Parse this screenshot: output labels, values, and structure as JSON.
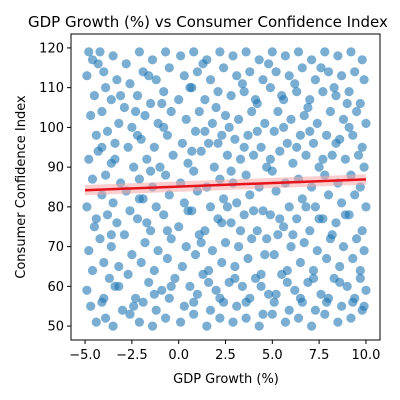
{
  "chart_data": {
    "type": "scatter",
    "title": "GDP Growth (%) vs Consumer Confidence Index",
    "xlabel": "GDP Growth (%)",
    "ylabel": "Consumer Confidence Index",
    "xlim": [
      -5.75,
      10.75
    ],
    "ylim": [
      46.5,
      123.5
    ],
    "xticks": [
      -5.0,
      -2.5,
      0.0,
      2.5,
      5.0,
      7.5,
      10.0
    ],
    "xtick_labels": [
      "−5.0",
      "−2.5",
      "0.0",
      "2.5",
      "5.0",
      "7.5",
      "10.0"
    ],
    "yticks": [
      50,
      60,
      70,
      80,
      90,
      100,
      110,
      120
    ],
    "ytick_labels": [
      "50",
      "60",
      "70",
      "80",
      "90",
      "100",
      "110",
      "120"
    ],
    "grid": false,
    "point_color": "#1f77b4",
    "point_alpha": 0.6,
    "regression": {
      "color": "#e8141c",
      "band_color": "#f4a7a7",
      "x_start": -5.0,
      "y_start": 84.2,
      "x_end": 10.0,
      "y_end": 86.9,
      "ci_halfwidth": 1.3
    },
    "points": [
      [
        -4.8,
        119
      ],
      [
        -4.6,
        117
      ],
      [
        -4.9,
        113
      ],
      [
        -4.5,
        108
      ],
      [
        -4.7,
        103
      ],
      [
        -4.4,
        98
      ],
      [
        -4.8,
        92
      ],
      [
        -4.6,
        87
      ],
      [
        -4.9,
        80
      ],
      [
        -4.5,
        75
      ],
      [
        -4.8,
        69
      ],
      [
        -4.6,
        64
      ],
      [
        -4.9,
        59
      ],
      [
        -4.7,
        55
      ],
      [
        -4.4,
        51
      ],
      [
        -4.2,
        119
      ],
      [
        -4.0,
        114
      ],
      [
        -3.9,
        110
      ],
      [
        -4.1,
        104
      ],
      [
        -3.8,
        99
      ],
      [
        -4.3,
        94
      ],
      [
        -3.9,
        88
      ],
      [
        -4.1,
        83
      ],
      [
        -3.8,
        78
      ],
      [
        -4.2,
        72
      ],
      [
        -4.0,
        66
      ],
      [
        -3.7,
        62
      ],
      [
        -4.1,
        56
      ],
      [
        -3.9,
        52
      ],
      [
        -3.5,
        118
      ],
      [
        -3.3,
        112
      ],
      [
        -3.6,
        107
      ],
      [
        -3.2,
        101
      ],
      [
        -3.4,
        96
      ],
      [
        -3.6,
        91
      ],
      [
        -3.1,
        86
      ],
      [
        -3.5,
        81
      ],
      [
        -3.3,
        76
      ],
      [
        -3.6,
        70
      ],
      [
        -3.2,
        65
      ],
      [
        -3.4,
        60
      ],
      [
        -3.0,
        54
      ],
      [
        -3.5,
        50
      ],
      [
        -2.8,
        116
      ],
      [
        -2.6,
        111
      ],
      [
        -2.9,
        105
      ],
      [
        -2.5,
        100
      ],
      [
        -2.7,
        95
      ],
      [
        -2.4,
        90
      ],
      [
        -2.8,
        84
      ],
      [
        -2.6,
        79
      ],
      [
        -2.9,
        73
      ],
      [
        -2.5,
        68
      ],
      [
        -2.7,
        63
      ],
      [
        -2.3,
        57
      ],
      [
        -2.6,
        53
      ],
      [
        -2.1,
        119
      ],
      [
        -1.9,
        114
      ],
      [
        -2.2,
        108
      ],
      [
        -1.8,
        103
      ],
      [
        -2.0,
        97
      ],
      [
        -1.7,
        92
      ],
      [
        -2.1,
        87
      ],
      [
        -1.9,
        82
      ],
      [
        -2.2,
        77
      ],
      [
        -1.8,
        71
      ],
      [
        -2.0,
        66
      ],
      [
        -1.6,
        61
      ],
      [
        -1.9,
        56
      ],
      [
        -2.1,
        51
      ],
      [
        -1.4,
        117
      ],
      [
        -1.2,
        112
      ],
      [
        -1.5,
        106
      ],
      [
        -1.1,
        101
      ],
      [
        -1.3,
        95
      ],
      [
        -1.0,
        90
      ],
      [
        -1.4,
        85
      ],
      [
        -1.2,
        80
      ],
      [
        -1.5,
        74
      ],
      [
        -1.1,
        69
      ],
      [
        -1.3,
        64
      ],
      [
        -0.9,
        59
      ],
      [
        -1.2,
        54
      ],
      [
        -1.4,
        50
      ],
      [
        -0.7,
        119
      ],
      [
        -0.5,
        115
      ],
      [
        -0.8,
        109
      ],
      [
        -0.4,
        104
      ],
      [
        -0.6,
        98
      ],
      [
        -0.3,
        93
      ],
      [
        -0.7,
        88
      ],
      [
        -0.5,
        83
      ],
      [
        -0.8,
        78
      ],
      [
        -0.4,
        72
      ],
      [
        -0.6,
        67
      ],
      [
        -0.2,
        62
      ],
      [
        -0.5,
        57
      ],
      [
        -0.7,
        52
      ],
      [
        0.1,
        118
      ],
      [
        0.3,
        113
      ],
      [
        0.0,
        107
      ],
      [
        0.4,
        102
      ],
      [
        0.2,
        96
      ],
      [
        0.5,
        91
      ],
      [
        0.1,
        86
      ],
      [
        0.3,
        81
      ],
      [
        0.0,
        75
      ],
      [
        0.4,
        70
      ],
      [
        0.2,
        65
      ],
      [
        0.6,
        60
      ],
      [
        0.3,
        55
      ],
      [
        0.1,
        51
      ],
      [
        0.8,
        119
      ],
      [
        1.0,
        114
      ],
      [
        0.7,
        110
      ],
      [
        1.1,
        104
      ],
      [
        0.9,
        99
      ],
      [
        1.2,
        94
      ],
      [
        0.8,
        89
      ],
      [
        1.0,
        84
      ],
      [
        0.7,
        79
      ],
      [
        1.1,
        73
      ],
      [
        0.9,
        68
      ],
      [
        1.3,
        63
      ],
      [
        1.0,
        58
      ],
      [
        0.8,
        53
      ],
      [
        1.5,
        117
      ],
      [
        1.7,
        112
      ],
      [
        1.4,
        107
      ],
      [
        1.8,
        101
      ],
      [
        1.6,
        96
      ],
      [
        1.9,
        90
      ],
      [
        1.5,
        85
      ],
      [
        1.7,
        80
      ],
      [
        1.4,
        74
      ],
      [
        1.8,
        69
      ],
      [
        1.6,
        64
      ],
      [
        2.0,
        59
      ],
      [
        1.7,
        54
      ],
      [
        1.5,
        50
      ],
      [
        2.2,
        119
      ],
      [
        2.4,
        115
      ],
      [
        2.1,
        109
      ],
      [
        2.5,
        103
      ],
      [
        2.3,
        98
      ],
      [
        2.6,
        93
      ],
      [
        2.2,
        87
      ],
      [
        2.4,
        82
      ],
      [
        2.1,
        77
      ],
      [
        2.5,
        71
      ],
      [
        2.3,
        66
      ],
      [
        2.7,
        61
      ],
      [
        2.4,
        56
      ],
      [
        2.2,
        52
      ],
      [
        2.9,
        118
      ],
      [
        3.1,
        113
      ],
      [
        2.8,
        108
      ],
      [
        3.2,
        102
      ],
      [
        3.0,
        97
      ],
      [
        3.3,
        92
      ],
      [
        2.9,
        86
      ],
      [
        3.1,
        81
      ],
      [
        2.8,
        76
      ],
      [
        3.2,
        70
      ],
      [
        3.0,
        65
      ],
      [
        3.4,
        60
      ],
      [
        3.1,
        55
      ],
      [
        2.9,
        51
      ],
      [
        3.6,
        119
      ],
      [
        3.8,
        114
      ],
      [
        3.5,
        109
      ],
      [
        3.9,
        104
      ],
      [
        3.7,
        98
      ],
      [
        4.0,
        93
      ],
      [
        3.6,
        88
      ],
      [
        3.8,
        83
      ],
      [
        3.5,
        78
      ],
      [
        3.9,
        72
      ],
      [
        3.7,
        67
      ],
      [
        4.1,
        62
      ],
      [
        3.8,
        57
      ],
      [
        3.6,
        52
      ],
      [
        4.3,
        117
      ],
      [
        4.5,
        112
      ],
      [
        4.2,
        106
      ],
      [
        4.6,
        101
      ],
      [
        4.4,
        95
      ],
      [
        4.7,
        90
      ],
      [
        4.3,
        85
      ],
      [
        4.5,
        79
      ],
      [
        4.2,
        74
      ],
      [
        4.6,
        68
      ],
      [
        4.4,
        63
      ],
      [
        4.8,
        58
      ],
      [
        4.5,
        53
      ],
      [
        4.3,
        50
      ],
      [
        5.0,
        119
      ],
      [
        5.2,
        114
      ],
      [
        4.9,
        110
      ],
      [
        5.3,
        104
      ],
      [
        5.1,
        99
      ],
      [
        5.4,
        94
      ],
      [
        5.0,
        89
      ],
      [
        5.2,
        84
      ],
      [
        4.9,
        78
      ],
      [
        5.3,
        73
      ],
      [
        5.1,
        68
      ],
      [
        5.5,
        63
      ],
      [
        5.2,
        58
      ],
      [
        5.0,
        53
      ],
      [
        5.7,
        118
      ],
      [
        5.9,
        113
      ],
      [
        5.6,
        107
      ],
      [
        6.0,
        102
      ],
      [
        5.8,
        96
      ],
      [
        6.1,
        91
      ],
      [
        5.7,
        86
      ],
      [
        5.9,
        80
      ],
      [
        5.6,
        75
      ],
      [
        6.0,
        70
      ],
      [
        5.8,
        64
      ],
      [
        6.2,
        59
      ],
      [
        5.9,
        54
      ],
      [
        5.7,
        51
      ],
      [
        6.4,
        119
      ],
      [
        6.6,
        115
      ],
      [
        6.3,
        109
      ],
      [
        6.7,
        103
      ],
      [
        6.5,
        98
      ],
      [
        6.8,
        93
      ],
      [
        6.4,
        87
      ],
      [
        6.6,
        82
      ],
      [
        6.3,
        77
      ],
      [
        6.7,
        71
      ],
      [
        6.5,
        66
      ],
      [
        6.9,
        61
      ],
      [
        6.6,
        56
      ],
      [
        6.4,
        52
      ],
      [
        7.1,
        117
      ],
      [
        7.3,
        112
      ],
      [
        7.0,
        107
      ],
      [
        7.4,
        101
      ],
      [
        7.2,
        96
      ],
      [
        7.5,
        90
      ],
      [
        7.1,
        85
      ],
      [
        7.3,
        80
      ],
      [
        7.0,
        74
      ],
      [
        7.4,
        69
      ],
      [
        7.2,
        64
      ],
      [
        7.6,
        58
      ],
      [
        7.3,
        54
      ],
      [
        7.1,
        50
      ],
      [
        7.8,
        119
      ],
      [
        8.0,
        114
      ],
      [
        7.7,
        109
      ],
      [
        8.1,
        104
      ],
      [
        7.9,
        98
      ],
      [
        8.2,
        93
      ],
      [
        7.8,
        88
      ],
      [
        8.0,
        83
      ],
      [
        7.7,
        77
      ],
      [
        8.1,
        72
      ],
      [
        7.9,
        67
      ],
      [
        8.3,
        62
      ],
      [
        8.0,
        57
      ],
      [
        7.8,
        53
      ],
      [
        8.5,
        118
      ],
      [
        8.7,
        113
      ],
      [
        8.4,
        108
      ],
      [
        8.8,
        102
      ],
      [
        8.6,
        97
      ],
      [
        8.9,
        92
      ],
      [
        8.5,
        86
      ],
      [
        8.7,
        81
      ],
      [
        8.4,
        76
      ],
      [
        8.8,
        70
      ],
      [
        8.6,
        65
      ],
      [
        9.0,
        60
      ],
      [
        8.7,
        55
      ],
      [
        8.5,
        51
      ],
      [
        9.2,
        119
      ],
      [
        9.4,
        114
      ],
      [
        9.1,
        109
      ],
      [
        9.5,
        104
      ],
      [
        9.3,
        98
      ],
      [
        9.6,
        93
      ],
      [
        9.2,
        88
      ],
      [
        9.4,
        83
      ],
      [
        9.1,
        78
      ],
      [
        9.5,
        72
      ],
      [
        9.3,
        67
      ],
      [
        9.7,
        62
      ],
      [
        9.4,
        57
      ],
      [
        9.2,
        52
      ],
      [
        9.8,
        117
      ],
      [
        9.9,
        112
      ],
      [
        9.7,
        106
      ],
      [
        10.0,
        101
      ],
      [
        9.8,
        95
      ],
      [
        9.9,
        90
      ],
      [
        9.7,
        85
      ],
      [
        10.0,
        80
      ],
      [
        9.8,
        74
      ],
      [
        9.9,
        69
      ],
      [
        9.7,
        64
      ],
      [
        10.0,
        59
      ],
      [
        9.8,
        54
      ],
      [
        9.9,
        55
      ],
      [
        -4.3,
        116
      ],
      [
        -3.1,
        108
      ],
      [
        -2.3,
        104
      ],
      [
        -1.6,
        113
      ],
      [
        -0.9,
        106
      ],
      [
        0.6,
        110
      ],
      [
        1.3,
        116
      ],
      [
        2.0,
        105
      ],
      [
        2.7,
        100
      ],
      [
        3.4,
        111
      ],
      [
        4.1,
        107
      ],
      [
        4.8,
        116
      ],
      [
        5.5,
        108
      ],
      [
        6.2,
        111
      ],
      [
        6.9,
        105
      ],
      [
        7.6,
        115
      ],
      [
        8.3,
        110
      ],
      [
        9.0,
        106
      ],
      [
        -4.1,
        95
      ],
      [
        -3.4,
        92
      ],
      [
        -2.2,
        98
      ],
      [
        -1.5,
        89
      ],
      [
        -0.8,
        100
      ],
      [
        0.7,
        94
      ],
      [
        1.4,
        99
      ],
      [
        2.1,
        96
      ],
      [
        2.8,
        89
      ],
      [
        3.5,
        95
      ],
      [
        4.2,
        99
      ],
      [
        4.9,
        92
      ],
      [
        5.6,
        100
      ],
      [
        6.3,
        95
      ],
      [
        7.0,
        99
      ],
      [
        7.7,
        92
      ],
      [
        8.4,
        96
      ],
      [
        9.1,
        100
      ],
      [
        -4.4,
        77
      ],
      [
        -3.6,
        73
      ],
      [
        -2.1,
        82
      ],
      [
        -1.7,
        76
      ],
      [
        -0.6,
        74
      ],
      [
        0.5,
        79
      ],
      [
        1.2,
        71
      ],
      [
        2.3,
        76
      ],
      [
        2.6,
        80
      ],
      [
        3.3,
        74
      ],
      [
        4.0,
        79
      ],
      [
        4.7,
        72
      ],
      [
        5.4,
        77
      ],
      [
        6.1,
        73
      ],
      [
        6.8,
        80
      ],
      [
        7.5,
        77
      ],
      [
        8.2,
        73
      ],
      [
        8.9,
        78
      ],
      [
        -4.0,
        57
      ],
      [
        -3.2,
        60
      ],
      [
        -2.4,
        55
      ],
      [
        -1.3,
        58
      ],
      [
        -0.4,
        60
      ],
      [
        0.8,
        56
      ],
      [
        1.6,
        61
      ],
      [
        2.2,
        57
      ],
      [
        3.0,
        62
      ],
      [
        3.6,
        56
      ],
      [
        4.4,
        60
      ],
      [
        5.1,
        56
      ],
      [
        5.8,
        61
      ],
      [
        6.5,
        57
      ],
      [
        7.2,
        62
      ],
      [
        7.9,
        56
      ],
      [
        8.6,
        61
      ],
      [
        9.3,
        56
      ]
    ]
  }
}
